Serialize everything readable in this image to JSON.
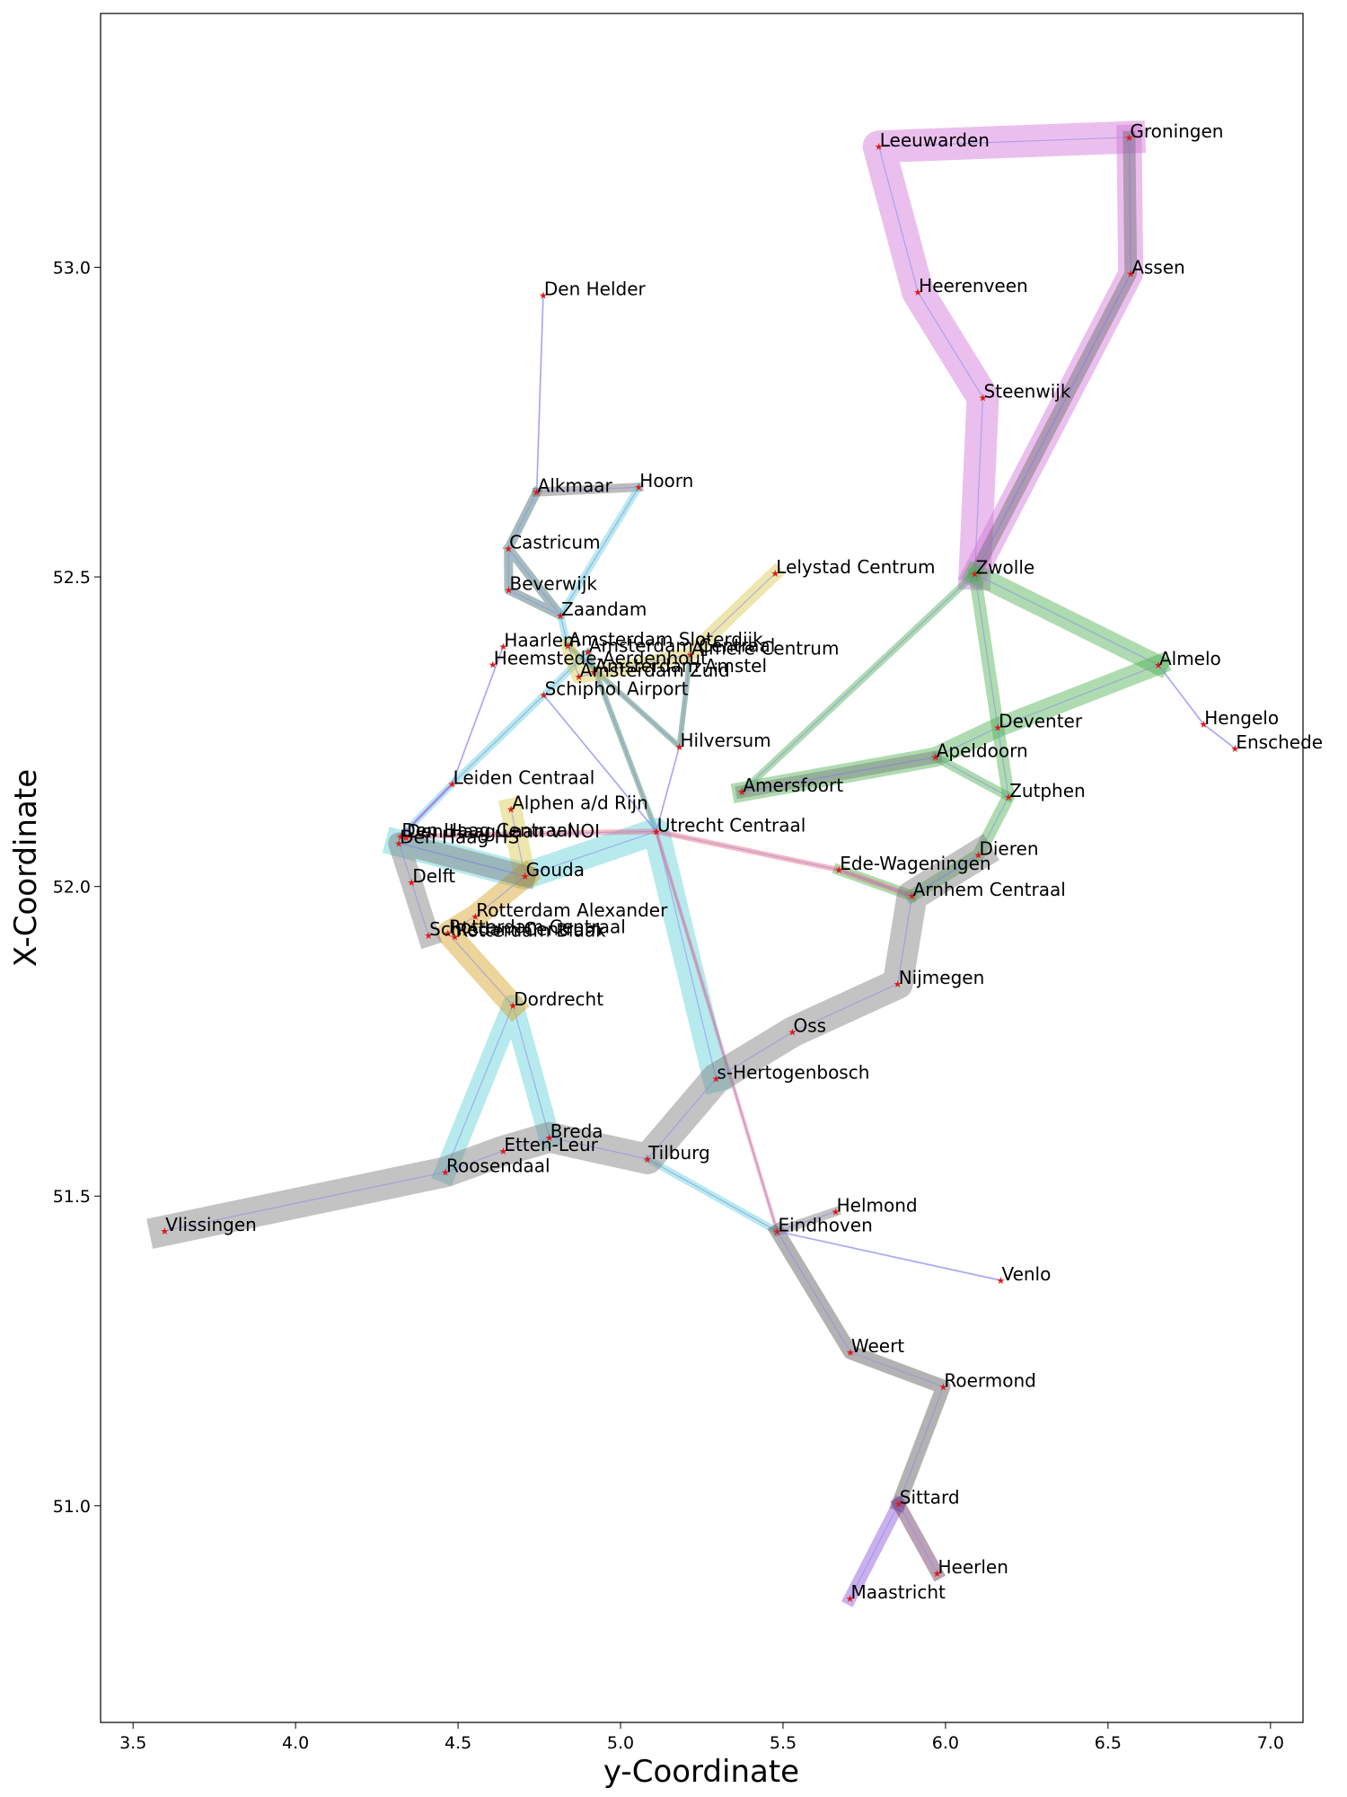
{
  "chart_data": {
    "type": "scatter",
    "title": "",
    "xlabel": "y-Coordinate",
    "ylabel": "X-Coordinate",
    "xlim": [
      3.4,
      7.1
    ],
    "ylim": [
      50.65,
      53.41
    ],
    "xticks": [
      3.5,
      4.0,
      4.5,
      5.0,
      5.5,
      6.0,
      6.5,
      7.0
    ],
    "xtick_labels": [
      "3.5",
      "4.0",
      "4.5",
      "5.0",
      "5.5",
      "6.0",
      "6.5",
      "7.0"
    ],
    "yticks": [
      51.0,
      51.5,
      52.0,
      52.5,
      53.0
    ],
    "ytick_labels": [
      "51.0",
      "51.5",
      "52.0",
      "52.5",
      "53.0"
    ],
    "grid": false,
    "stations": [
      {
        "name": "Groningen",
        "x": 6.565,
        "y": 53.21
      },
      {
        "name": "Leeuwarden",
        "x": 5.795,
        "y": 53.195
      },
      {
        "name": "Assen",
        "x": 6.57,
        "y": 52.99
      },
      {
        "name": "Den Helder",
        "x": 4.762,
        "y": 52.955
      },
      {
        "name": "Heerenveen",
        "x": 5.915,
        "y": 52.96
      },
      {
        "name": "Steenwijk",
        "x": 6.115,
        "y": 52.79
      },
      {
        "name": "Alkmaar",
        "x": 4.742,
        "y": 52.637
      },
      {
        "name": "Hoorn",
        "x": 5.056,
        "y": 52.645
      },
      {
        "name": "Castricum",
        "x": 4.655,
        "y": 52.546
      },
      {
        "name": "Lelystad Centrum",
        "x": 5.476,
        "y": 52.506
      },
      {
        "name": "Zwolle",
        "x": 6.09,
        "y": 52.505
      },
      {
        "name": "Beverwijk",
        "x": 4.656,
        "y": 52.479
      },
      {
        "name": "Zaandam",
        "x": 4.815,
        "y": 52.438
      },
      {
        "name": "Haarlem",
        "x": 4.639,
        "y": 52.388
      },
      {
        "name": "Amsterdam Sloterdijk",
        "x": 4.838,
        "y": 52.389
      },
      {
        "name": "Amsterdam Centraal",
        "x": 4.9,
        "y": 52.379
      },
      {
        "name": "Almere Centrum",
        "x": 5.215,
        "y": 52.375
      },
      {
        "name": "Heemstede-Aerdenhout",
        "x": 4.607,
        "y": 52.359
      },
      {
        "name": "Amsterdam Amstel",
        "x": 4.918,
        "y": 52.346
      },
      {
        "name": "Amsterdam Zuid",
        "x": 4.872,
        "y": 52.339
      },
      {
        "name": "Almelo",
        "x": 6.655,
        "y": 52.358
      },
      {
        "name": "Schiphol Airport",
        "x": 4.764,
        "y": 52.309
      },
      {
        "name": "Hengelo",
        "x": 6.794,
        "y": 52.262
      },
      {
        "name": "Deventer",
        "x": 6.161,
        "y": 52.257
      },
      {
        "name": "Enschede",
        "x": 6.891,
        "y": 52.223
      },
      {
        "name": "Hilversum",
        "x": 5.181,
        "y": 52.226
      },
      {
        "name": "Apeldoorn",
        "x": 5.969,
        "y": 52.209
      },
      {
        "name": "Leiden Centraal",
        "x": 4.482,
        "y": 52.166
      },
      {
        "name": "Amersfoort",
        "x": 5.374,
        "y": 52.153
      },
      {
        "name": "Zutphen",
        "x": 6.194,
        "y": 52.145
      },
      {
        "name": "Alphen a/d Rijn",
        "x": 4.663,
        "y": 52.125
      },
      {
        "name": "Utrecht Centraal",
        "x": 5.11,
        "y": 52.089
      },
      {
        "name": "Den Haag Centraal",
        "x": 4.324,
        "y": 52.081
      },
      {
        "name": "Den Haag Laan v NOI",
        "x": 4.34,
        "y": 52.079
      },
      {
        "name": "Den Haag HS",
        "x": 4.318,
        "y": 52.07
      },
      {
        "name": "Dieren",
        "x": 6.101,
        "y": 52.051
      },
      {
        "name": "Ede-Wageningen",
        "x": 5.672,
        "y": 52.027
      },
      {
        "name": "Gouda",
        "x": 4.706,
        "y": 52.017
      },
      {
        "name": "Arnhem Centraal",
        "x": 5.897,
        "y": 51.985
      },
      {
        "name": "Delft",
        "x": 4.357,
        "y": 52.007
      },
      {
        "name": "Rotterdam Alexander",
        "x": 4.553,
        "y": 51.952
      },
      {
        "name": "Schiedam Centrum",
        "x": 4.409,
        "y": 51.921
      },
      {
        "name": "Rotterdam Centraal",
        "x": 4.469,
        "y": 51.925
      },
      {
        "name": "Rotterdam Blaak",
        "x": 4.49,
        "y": 51.919
      },
      {
        "name": "Nijmegen",
        "x": 5.853,
        "y": 51.843
      },
      {
        "name": "Dordrecht",
        "x": 4.669,
        "y": 51.808
      },
      {
        "name": "Oss",
        "x": 5.529,
        "y": 51.765
      },
      {
        "name": "s-Hertogenbosch",
        "x": 5.294,
        "y": 51.69
      },
      {
        "name": "Breda",
        "x": 4.781,
        "y": 51.595
      },
      {
        "name": "Etten-Leur",
        "x": 4.639,
        "y": 51.573
      },
      {
        "name": "Tilburg",
        "x": 5.083,
        "y": 51.56
      },
      {
        "name": "Roosendaal",
        "x": 4.461,
        "y": 51.539
      },
      {
        "name": "Helmond",
        "x": 5.662,
        "y": 51.475
      },
      {
        "name": "Vlissingen",
        "x": 3.597,
        "y": 51.444
      },
      {
        "name": "Eindhoven",
        "x": 5.482,
        "y": 51.443
      },
      {
        "name": "Venlo",
        "x": 6.17,
        "y": 51.364
      },
      {
        "name": "Weert",
        "x": 5.707,
        "y": 51.248
      },
      {
        "name": "Roermond",
        "x": 5.993,
        "y": 51.192
      },
      {
        "name": "Sittard",
        "x": 5.856,
        "y": 51.003
      },
      {
        "name": "Heerlen",
        "x": 5.974,
        "y": 50.891
      },
      {
        "name": "Maastricht",
        "x": 5.706,
        "y": 50.85
      }
    ],
    "routes": [
      {
        "color": "#d070d8",
        "width": 36,
        "stops": [
          "Groningen",
          "Leeuwarden",
          "Heerenveen",
          "Steenwijk",
          "Zwolle"
        ]
      },
      {
        "color": "#d070d8",
        "width": 28,
        "stops": [
          "Groningen",
          "Assen",
          "Zwolle"
        ]
      },
      {
        "color": "#6b6b6b",
        "width": 14,
        "stops": [
          "Groningen",
          "Assen",
          "Zwolle"
        ]
      },
      {
        "color": "#4caf50",
        "width": 22,
        "stops": [
          "Zwolle",
          "Almelo"
        ]
      },
      {
        "color": "#4caf50",
        "width": 22,
        "stops": [
          "Almelo",
          "Deventer",
          "Apeldoorn",
          "Amersfoort"
        ]
      },
      {
        "color": "#4caf50",
        "width": 14,
        "stops": [
          "Zwolle",
          "Deventer",
          "Zutphen",
          "Dieren",
          "Arnhem Centraal"
        ]
      },
      {
        "color": "#4caf50",
        "width": 8,
        "stops": [
          "Zwolle",
          "Amersfoort"
        ]
      },
      {
        "color": "#4caf50",
        "width": 10,
        "stops": [
          "Apeldoorn",
          "Zutphen"
        ]
      },
      {
        "color": "#4caf50",
        "width": 12,
        "stops": [
          "Ede-Wageningen",
          "Arnhem Centraal"
        ]
      },
      {
        "color": "#2e7d4f",
        "width": 6,
        "stops": [
          "Amsterdam Sloterdijk",
          "Hilversum",
          "Almere Centrum"
        ]
      },
      {
        "color": "#2e7d4f",
        "width": 6,
        "stops": [
          "Amsterdam Centraal",
          "Utrecht Centraal"
        ]
      },
      {
        "color": "#3a6b6b",
        "width": 10,
        "stops": [
          "Alkmaar",
          "Castricum",
          "Beverwijk",
          "Zaandam",
          "Castricum"
        ]
      },
      {
        "color": "#6b6b6b",
        "width": 10,
        "stops": [
          "Alkmaar",
          "Hoorn"
        ]
      },
      {
        "color": "#5fd0d8",
        "width": 8,
        "stops": [
          "Hoorn",
          "Zaandam",
          "Amsterdam Sloterdijk"
        ]
      },
      {
        "color": "#5fd0d8",
        "width": 8,
        "stops": [
          "Amsterdam Centraal",
          "Schiphol Airport",
          "Leiden Centraal",
          "Den Haag Centraal"
        ]
      },
      {
        "color": "#5fd0d8",
        "width": 30,
        "stops": [
          "Den Haag HS",
          "Gouda",
          "Utrecht Centraal",
          "s-Hertogenbosch"
        ]
      },
      {
        "color": "#5fd0d8",
        "width": 24,
        "stops": [
          "Breda",
          "Dordrecht",
          "Roosendaal"
        ]
      },
      {
        "color": "#5fd0d8",
        "width": 8,
        "stops": [
          "Tilburg",
          "Eindhoven"
        ]
      },
      {
        "color": "#d8c84a",
        "width": 24,
        "stops": [
          "Alphen a/d Rijn",
          "Gouda"
        ]
      },
      {
        "color": "#d8c84a",
        "width": 16,
        "stops": [
          "Lelystad Centrum",
          "Almere Centrum",
          "Amsterdam Zuid",
          "Amsterdam Sloterdijk"
        ]
      },
      {
        "color": "#d8a020",
        "width": 26,
        "stops": [
          "Gouda",
          "Rotterdam Alexander",
          "Rotterdam Centraal",
          "Dordrecht"
        ]
      },
      {
        "color": "#7a7a7a",
        "width": 24,
        "stops": [
          "Schiedam Centrum",
          "Delft",
          "Den Haag HS",
          "Gouda"
        ]
      },
      {
        "color": "#f06070",
        "width": 6,
        "stops": [
          "Den Haag Centraal",
          "Utrecht Centraal",
          "Ede-Wageningen",
          "Arnhem Centraal"
        ]
      },
      {
        "color": "#f06070",
        "width": 4,
        "stops": [
          "Utrecht Centraal",
          "Eindhoven"
        ]
      },
      {
        "color": "#7a7a7a",
        "width": 34,
        "stops": [
          "Vlissingen",
          "Roosendaal",
          "Etten-Leur",
          "Breda",
          "Tilburg",
          "s-Hertogenbosch",
          "Oss",
          "Nijmegen",
          "Arnhem Centraal",
          "Dieren"
        ]
      },
      {
        "color": "#7a7a7a",
        "width": 14,
        "stops": [
          "Amersfoort",
          "Apeldoorn"
        ]
      },
      {
        "color": "#555555",
        "width": 16,
        "stops": [
          "Eindhoven",
          "Weert",
          "Roermond",
          "Sittard"
        ]
      },
      {
        "color": "#7a7a7a",
        "width": 10,
        "stops": [
          "Eindhoven",
          "Helmond"
        ]
      },
      {
        "color": "#8a4fd8",
        "width": 14,
        "stops": [
          "Sittard",
          "Maastricht"
        ]
      },
      {
        "color": "#6b2e5a",
        "width": 14,
        "stops": [
          "Sittard",
          "Heerlen"
        ]
      },
      {
        "color": "#9090f0",
        "width": 2,
        "stops": [
          "Den Helder",
          "Alkmaar"
        ]
      },
      {
        "color": "#9090f0",
        "width": 2,
        "stops": [
          "Almelo",
          "Hengelo",
          "Enschede"
        ]
      },
      {
        "color": "#9090f0",
        "width": 2,
        "stops": [
          "Eindhoven",
          "Venlo"
        ]
      },
      {
        "color": "#9090f0",
        "width": 2,
        "stops": [
          "Haarlem",
          "Leiden Centraal"
        ]
      },
      {
        "color": "#9090f0",
        "width": 2,
        "stops": [
          "Schiphol Airport",
          "Utrecht Centraal",
          "Hilversum"
        ]
      },
      {
        "color": "#c040e0",
        "width": 3,
        "stops": [
          "Leiden Centraal",
          "Den Haag Centraal"
        ]
      }
    ]
  }
}
